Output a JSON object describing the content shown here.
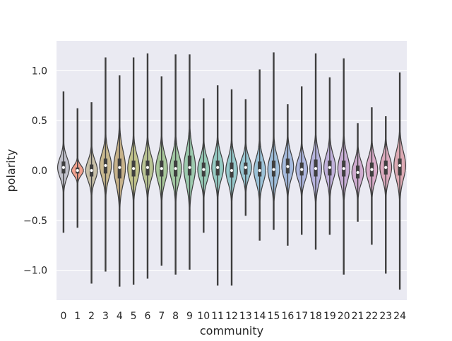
{
  "chart_data": {
    "type": "violin",
    "title": "",
    "xlabel": "community",
    "ylabel": "polarity",
    "ylim": [
      -1.3,
      1.3
    ],
    "yticks": [
      -1.0,
      -0.5,
      0.0,
      0.5,
      1.0
    ],
    "ytick_labels": [
      "−1.0",
      "−0.5",
      "0.0",
      "0.5",
      "1.0"
    ],
    "grid": true,
    "background": "#eaeaf2",
    "categories": [
      "0",
      "1",
      "2",
      "3",
      "4",
      "5",
      "6",
      "7",
      "8",
      "9",
      "10",
      "11",
      "12",
      "13",
      "14",
      "15",
      "16",
      "17",
      "18",
      "19",
      "20",
      "21",
      "22",
      "23",
      "24"
    ],
    "series": [
      {
        "min": -0.62,
        "q1": -0.03,
        "median": 0.03,
        "q3": 0.09,
        "max": 0.79,
        "colour": "#c2c2cc"
      },
      {
        "min": -0.57,
        "q1": -0.03,
        "median": 0.0,
        "q3": 0.03,
        "max": 0.62,
        "colour": "#f0a08e"
      },
      {
        "min": -1.13,
        "q1": -0.06,
        "median": 0.0,
        "q3": 0.06,
        "max": 0.68,
        "colour": "#c8c0a8"
      },
      {
        "min": -1.01,
        "q1": -0.03,
        "median": 0.05,
        "q3": 0.12,
        "max": 1.13,
        "colour": "#c9b98f"
      },
      {
        "min": -1.16,
        "q1": -0.08,
        "median": 0.03,
        "q3": 0.12,
        "max": 0.95,
        "colour": "#c7b28a"
      },
      {
        "min": -1.14,
        "q1": -0.06,
        "median": 0.02,
        "q3": 0.1,
        "max": 1.13,
        "colour": "#c2c48c"
      },
      {
        "min": -1.08,
        "q1": -0.05,
        "median": 0.03,
        "q3": 0.1,
        "max": 1.17,
        "colour": "#b9c494"
      },
      {
        "min": -0.95,
        "q1": -0.06,
        "median": 0.02,
        "q3": 0.1,
        "max": 0.94,
        "colour": "#a8c79a"
      },
      {
        "min": -1.04,
        "q1": -0.06,
        "median": 0.02,
        "q3": 0.1,
        "max": 1.16,
        "colour": "#a2c9a4"
      },
      {
        "min": -0.99,
        "q1": -0.05,
        "median": 0.03,
        "q3": 0.15,
        "max": 1.16,
        "colour": "#9ccaae"
      },
      {
        "min": -0.62,
        "q1": -0.06,
        "median": 0.01,
        "q3": 0.08,
        "max": 0.72,
        "colour": "#98cbb8"
      },
      {
        "min": -1.15,
        "q1": -0.05,
        "median": 0.03,
        "q3": 0.1,
        "max": 0.85,
        "colour": "#96cbc4"
      },
      {
        "min": -1.15,
        "q1": -0.07,
        "median": 0.0,
        "q3": 0.08,
        "max": 0.81,
        "colour": "#96c9cc"
      },
      {
        "min": -0.45,
        "q1": -0.04,
        "median": 0.03,
        "q3": 0.08,
        "max": 0.71,
        "colour": "#98c6d2"
      },
      {
        "min": -0.7,
        "q1": -0.06,
        "median": 0.0,
        "q3": 0.09,
        "max": 1.01,
        "colour": "#9bc2d8"
      },
      {
        "min": -0.59,
        "q1": -0.06,
        "median": 0.01,
        "q3": 0.1,
        "max": 1.18,
        "colour": "#a0bfdc"
      },
      {
        "min": -0.75,
        "q1": -0.03,
        "median": 0.04,
        "q3": 0.12,
        "max": 0.66,
        "colour": "#a6bbde"
      },
      {
        "min": -0.64,
        "q1": -0.05,
        "median": 0.01,
        "q3": 0.08,
        "max": 0.84,
        "colour": "#aeb7df"
      },
      {
        "min": -0.79,
        "q1": -0.06,
        "median": 0.02,
        "q3": 0.11,
        "max": 1.17,
        "colour": "#b6b3de"
      },
      {
        "min": -0.64,
        "q1": -0.05,
        "median": 0.03,
        "q3": 0.1,
        "max": 0.93,
        "colour": "#bfb0da"
      },
      {
        "min": -1.04,
        "q1": -0.06,
        "median": 0.02,
        "q3": 0.1,
        "max": 1.12,
        "colour": "#c8aed6"
      },
      {
        "min": -0.51,
        "q1": -0.08,
        "median": -0.02,
        "q3": 0.05,
        "max": 0.47,
        "colour": "#d0acd0"
      },
      {
        "min": -0.74,
        "q1": -0.06,
        "median": 0.01,
        "q3": 0.08,
        "max": 0.63,
        "colour": "#d8aac8"
      },
      {
        "min": -1.03,
        "q1": -0.04,
        "median": 0.03,
        "q3": 0.1,
        "max": 0.54,
        "colour": "#dcaabe"
      },
      {
        "min": -1.19,
        "q1": -0.05,
        "median": 0.05,
        "q3": 0.12,
        "max": 0.98,
        "colour": "#ddaab4"
      }
    ]
  }
}
